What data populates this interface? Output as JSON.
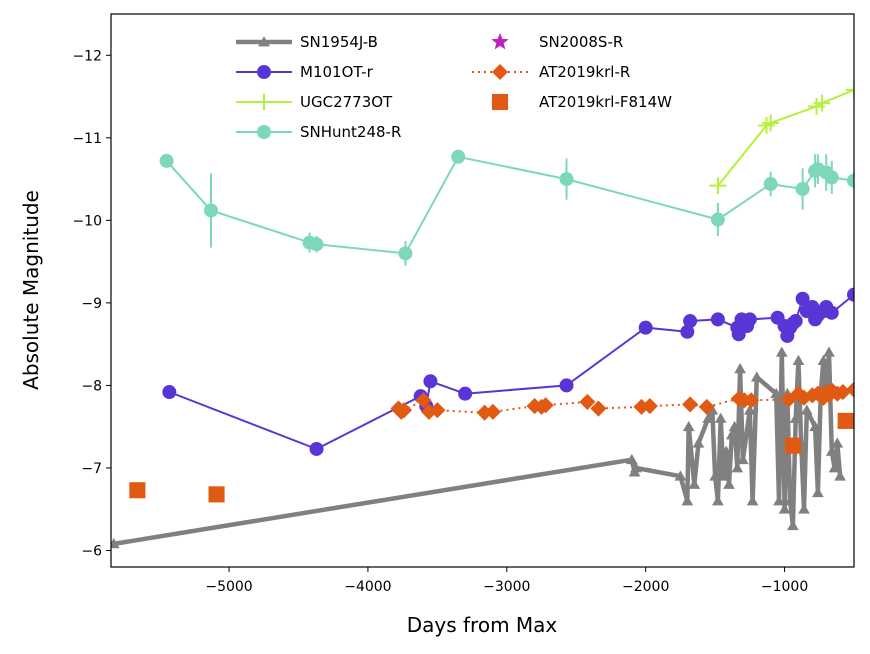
{
  "chart_data": {
    "type": "line",
    "xlabel": "Days from Max",
    "ylabel": "Absolute Magnitude",
    "xlim": [
      -5850,
      -500
    ],
    "ylim": [
      -5.8,
      -12.5
    ],
    "y_inverted": true,
    "x_ticks": [
      {
        "value": -5000,
        "label": "−5000"
      },
      {
        "value": -4000,
        "label": "−4000"
      },
      {
        "value": -3000,
        "label": "−3000"
      },
      {
        "value": -2000,
        "label": "−2000"
      },
      {
        "value": -1000,
        "label": "−1000"
      }
    ],
    "y_ticks": [
      {
        "value": -6,
        "label": "−6"
      },
      {
        "value": -7,
        "label": "−7"
      },
      {
        "value": -8,
        "label": "−8"
      },
      {
        "value": -9,
        "label": "−9"
      },
      {
        "value": -10,
        "label": "−10"
      },
      {
        "value": -11,
        "label": "−11"
      },
      {
        "value": -12,
        "label": "−12"
      }
    ],
    "legend_position": "top",
    "series": [
      {
        "name": "SN1954J-B",
        "color": "#808080",
        "marker": "triangle",
        "line": "solid",
        "line_width": 4.5,
        "x": [
          -5830,
          -2100,
          -2080,
          -2070,
          -1750,
          -1700,
          -1690,
          -1650,
          -1620,
          -1550,
          -1520,
          -1500,
          -1480,
          -1460,
          -1440,
          -1420,
          -1400,
          -1380,
          -1360,
          -1340,
          -1320,
          -1300,
          -1250,
          -1230,
          -1200,
          -1060,
          -1040,
          -1020,
          -1000,
          -980,
          -960,
          -940,
          -920,
          -900,
          -880,
          -860,
          -840,
          -780,
          -760,
          -740,
          -720,
          -700,
          -680,
          -660,
          -640,
          -620,
          -600
        ],
        "y": [
          -6.08,
          -7.1,
          -6.95,
          -7.0,
          -6.9,
          -6.6,
          -7.5,
          -6.8,
          -7.3,
          -7.6,
          -7.7,
          -6.9,
          -6.6,
          -7.6,
          -6.9,
          -7.2,
          -6.8,
          -7.4,
          -7.5,
          -7.0,
          -8.2,
          -7.1,
          -7.7,
          -6.6,
          -8.1,
          -7.9,
          -6.6,
          -8.4,
          -6.5,
          -7.9,
          -6.6,
          -6.3,
          -7.6,
          -8.3,
          -7.3,
          -6.5,
          -7.7,
          -7.5,
          -6.7,
          -7.9,
          -8.3,
          -7.9,
          -8.4,
          -7.2,
          -7.0,
          -7.3,
          -6.9
        ]
      },
      {
        "name": "M101OT-r",
        "color": "#5a35d6",
        "marker": "circle",
        "line": "solid",
        "line_width": 2,
        "x": [
          -5430,
          -4370,
          -3620,
          -3580,
          -3550,
          -3300,
          -2570,
          -2000,
          -1700,
          -1680,
          -1480,
          -1340,
          -1330,
          -1310,
          -1290,
          -1270,
          -1250,
          -1050,
          -1000,
          -980,
          -960,
          -940,
          -920,
          -870,
          -840,
          -800,
          -780,
          -760,
          -720,
          -700,
          -660,
          -500
        ],
        "y": [
          -7.92,
          -7.23,
          -7.87,
          -7.75,
          -8.05,
          -7.9,
          -8.0,
          -8.7,
          -8.65,
          -8.78,
          -8.8,
          -8.7,
          -8.62,
          -8.8,
          -8.78,
          -8.72,
          -8.8,
          -8.82,
          -8.72,
          -8.6,
          -8.7,
          -8.75,
          -8.78,
          -9.05,
          -8.9,
          -8.95,
          -8.8,
          -8.85,
          -8.9,
          -8.95,
          -8.88,
          -9.1
        ]
      },
      {
        "name": "UGC2773OT",
        "color": "#b5f03c",
        "marker": "plus",
        "line": "solid",
        "line_width": 2,
        "x": [
          -1480,
          -1130,
          -1100,
          -770,
          -730,
          -500
        ],
        "y": [
          -10.42,
          -11.15,
          -11.18,
          -11.38,
          -11.42,
          -11.58
        ]
      },
      {
        "name": "SNHunt248-R",
        "color": "#7dd8b8",
        "marker": "circle",
        "line": "solid",
        "line_width": 2,
        "errorbars": true,
        "x": [
          -5450,
          -5130,
          -4420,
          -4370,
          -3730,
          -3350,
          -2570,
          -1480,
          -1100,
          -870,
          -780,
          -760,
          -700,
          -660,
          -500
        ],
        "y": [
          -10.72,
          -10.12,
          -9.73,
          -9.71,
          -9.6,
          -10.77,
          -10.5,
          -10.01,
          -10.44,
          -10.38,
          -10.6,
          -10.62,
          -10.58,
          -10.52,
          -10.48
        ],
        "yerr": [
          0.05,
          0.45,
          0.12,
          0.1,
          0.15,
          0.08,
          0.25,
          0.2,
          0.15,
          0.25,
          0.2,
          0.18,
          0.22,
          0.2,
          0.1
        ]
      },
      {
        "name": "SN2008S-R",
        "color": "#c020c0",
        "marker": "star",
        "line": "solid",
        "line_width": 2,
        "x": [],
        "y": []
      },
      {
        "name": "AT2019krl-R",
        "color": "#e05a14",
        "marker": "diamond",
        "line": "dotted",
        "line_width": 2,
        "x": [
          -3780,
          -3760,
          -3740,
          -3600,
          -3560,
          -3500,
          -3160,
          -3100,
          -2800,
          -2750,
          -2720,
          -2420,
          -2340,
          -2030,
          -1970,
          -1680,
          -1560,
          -1330,
          -1290,
          -1240,
          -970,
          -900,
          -860,
          -800,
          -760,
          -720,
          -700,
          -680,
          -660,
          -620,
          -580,
          -500
        ],
        "y": [
          -7.72,
          -7.68,
          -7.7,
          -7.82,
          -7.68,
          -7.7,
          -7.67,
          -7.68,
          -7.75,
          -7.74,
          -7.76,
          -7.8,
          -7.72,
          -7.74,
          -7.75,
          -7.77,
          -7.74,
          -7.84,
          -7.82,
          -7.82,
          -7.83,
          -7.9,
          -7.85,
          -7.88,
          -7.9,
          -7.85,
          -7.92,
          -7.88,
          -7.94,
          -7.9,
          -7.92,
          -7.95
        ]
      },
      {
        "name": "AT2019krl-F814W",
        "color": "#e05a14",
        "marker": "square",
        "line": "none",
        "line_width": 0,
        "x": [
          -5660,
          -5090,
          -940,
          -560
        ],
        "y": [
          -6.73,
          -6.68,
          -7.27,
          -7.57
        ]
      }
    ]
  }
}
